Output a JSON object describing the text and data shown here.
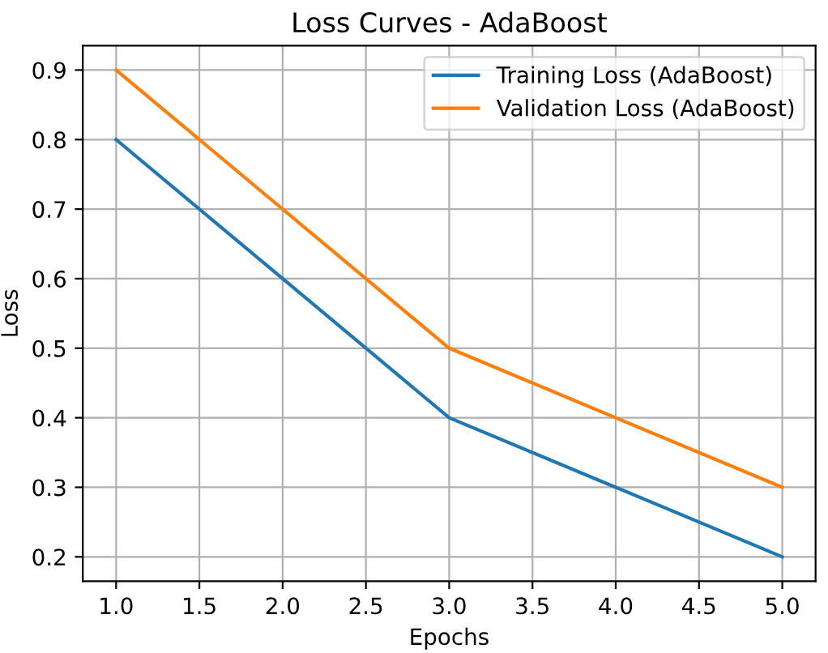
{
  "chart_data": {
    "type": "line",
    "title": "Loss Curves - AdaBoost",
    "xlabel": "Epochs",
    "ylabel": "Loss",
    "x": [
      1,
      2,
      3,
      4,
      5
    ],
    "series": [
      {
        "name": "Training Loss (AdaBoost)",
        "color": "#1f77b4",
        "values": [
          0.8,
          0.6,
          0.4,
          0.3,
          0.2
        ]
      },
      {
        "name": "Validation Loss (AdaBoost)",
        "color": "#ff7f0e",
        "values": [
          0.9,
          0.7,
          0.5,
          0.4,
          0.3
        ]
      }
    ],
    "xlim": [
      0.8,
      5.2
    ],
    "xticks": [
      {
        "value": 1,
        "label": "1.0"
      },
      1.5,
      {
        "value": 2,
        "label": "2.0"
      },
      2.5,
      {
        "value": 3,
        "label": "3.0"
      },
      3.5,
      {
        "value": 4,
        "label": "4.0"
      },
      4.5,
      {
        "value": 5,
        "label": "5.0"
      }
    ],
    "ylim": [
      0.165,
      0.935
    ],
    "yticks": [
      0.2,
      0.3,
      0.4,
      0.5,
      0.6,
      0.7,
      0.8,
      0.9
    ],
    "grid": true,
    "legend": "top right",
    "marker": "none",
    "line_style": "solid"
  }
}
